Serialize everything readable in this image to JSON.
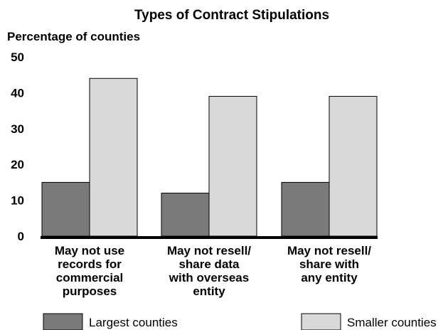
{
  "chart_data": {
    "type": "bar",
    "title": "Types of Contract Stipulations",
    "ylabel": "Percentage of counties",
    "xlabel": "",
    "ylim": [
      0,
      50
    ],
    "yticks": [
      0,
      10,
      20,
      30,
      40,
      50
    ],
    "categories": [
      [
        "May not use",
        "records for",
        "commercial",
        "purposes"
      ],
      [
        "May not resell/",
        "share data",
        "with overseas",
        "entity"
      ],
      [
        "May not resell/",
        "share with",
        "any entity"
      ]
    ],
    "series": [
      {
        "name": "Largest counties",
        "color": "#7a7a7a",
        "values": [
          15,
          12,
          15
        ]
      },
      {
        "name": "Smaller counties",
        "color": "#d9d9d9",
        "values": [
          44,
          39,
          39
        ]
      }
    ],
    "grid": false,
    "legend_position": "bottom"
  }
}
